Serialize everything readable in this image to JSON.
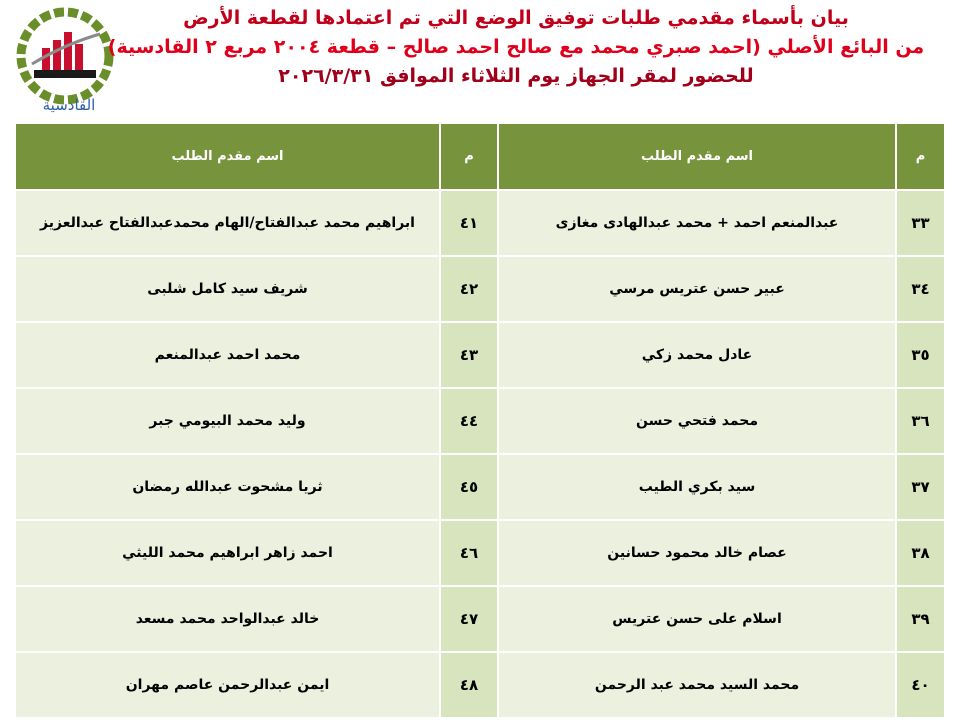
{
  "header": {
    "lines": [
      "بيان بأسماء مقدمي طلبات توفيق الوضع التي تم اعتمادها لقطعة الأرض",
      "من البائع الأصلي (احمد صبري محمد مع صالح احمد صالح – قطعة ٢٠٠٤ مربع ٢ القادسية)",
      "للحضور لمقر الجهاز يوم الثلاثاء الموافق ٢٠٢٦/٣/٣١"
    ],
    "logo_label": "القادسية"
  },
  "table": {
    "columns": [
      "م",
      "اسم مقدم الطلب",
      "م",
      "اسم مقدم الطلب"
    ],
    "rows": [
      [
        "٣٣",
        "عبدالمنعم احمد + محمد عبدالهادى مغازى",
        "٤١",
        "ابراهيم محمد عبدالفتاح/الهام محمدعبدالفتاح عبدالعزيز"
      ],
      [
        "٣٤",
        "عبير حسن عتريس مرسي",
        "٤٢",
        "شريف سيد كامل شلبى"
      ],
      [
        "٣٥",
        "عادل محمد زكي",
        "٤٣",
        "محمد احمد عبدالمنعم"
      ],
      [
        "٣٦",
        "محمد فتحي حسن",
        "٤٤",
        "وليد محمد البيومي جبر"
      ],
      [
        "٣٧",
        "سيد بكري الطيب",
        "٤٥",
        "ثريا مشحوت عبدالله رمضان"
      ],
      [
        "٣٨",
        "عصام خالد محمود حسانين",
        "٤٦",
        "احمد زاهر ابراهيم محمد الليثي"
      ],
      [
        "٣٩",
        "اسلام على حسن عتريس",
        "٤٧",
        "خالد عبدالواحد محمد مسعد"
      ],
      [
        "٤٠",
        "محمد السيد محمد عبد الرحمن",
        "٤٨",
        "ايمن عبدالرحمن عاصم مهران"
      ]
    ]
  }
}
